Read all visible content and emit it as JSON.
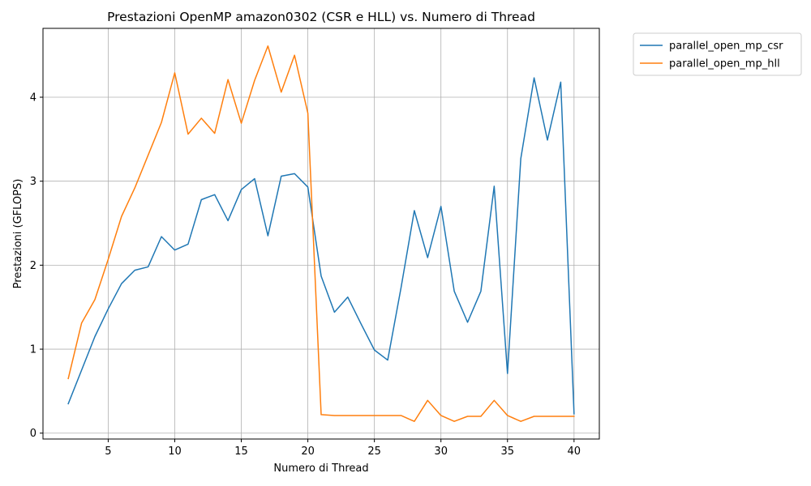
{
  "chart_data": {
    "type": "line",
    "title": "Prestazioni OpenMP amazon0302 (CSR e HLL) vs. Numero di Thread",
    "xlabel": "Numero di Thread",
    "ylabel": "Prestazioni (GFLOPS)",
    "xlim": [
      0.1,
      41.9
    ],
    "ylim": [
      -0.07,
      4.82
    ],
    "xticks": [
      5,
      10,
      15,
      20,
      25,
      30,
      35,
      40
    ],
    "yticks": [
      0,
      1,
      2,
      3,
      4
    ],
    "grid": true,
    "legend_placement": "outside-top-right",
    "x": [
      2,
      3,
      4,
      5,
      6,
      7,
      8,
      9,
      10,
      11,
      12,
      13,
      14,
      15,
      16,
      17,
      18,
      19,
      20,
      21,
      22,
      23,
      24,
      25,
      26,
      27,
      28,
      29,
      30,
      31,
      32,
      33,
      34,
      35,
      36,
      37,
      38,
      39,
      40
    ],
    "series": [
      {
        "name": "parallel_open_mp_csr",
        "color": "#1f77b4",
        "values": [
          0.35,
          0.75,
          1.15,
          1.48,
          1.78,
          1.94,
          1.98,
          2.34,
          2.18,
          2.25,
          2.78,
          2.84,
          2.53,
          2.9,
          3.03,
          2.35,
          3.06,
          3.09,
          2.93,
          1.87,
          1.44,
          1.62,
          1.3,
          0.99,
          0.87,
          1.73,
          2.65,
          2.09,
          2.7,
          1.69,
          1.32,
          1.69,
          2.94,
          0.71,
          3.27,
          4.23,
          3.49,
          4.18,
          0.23
        ]
      },
      {
        "name": "parallel_open_mp_hll",
        "color": "#ff7f0e",
        "values": [
          0.65,
          1.31,
          1.59,
          2.07,
          2.58,
          2.92,
          3.31,
          3.7,
          4.29,
          3.56,
          3.75,
          3.57,
          4.21,
          3.69,
          4.2,
          4.61,
          4.06,
          4.5,
          3.81,
          0.22,
          0.21,
          0.21,
          0.21,
          0.21,
          0.21,
          0.21,
          0.14,
          0.39,
          0.21,
          0.14,
          0.2,
          0.2,
          0.39,
          0.21,
          0.14,
          0.2,
          0.2,
          0.2,
          0.2
        ]
      }
    ]
  }
}
